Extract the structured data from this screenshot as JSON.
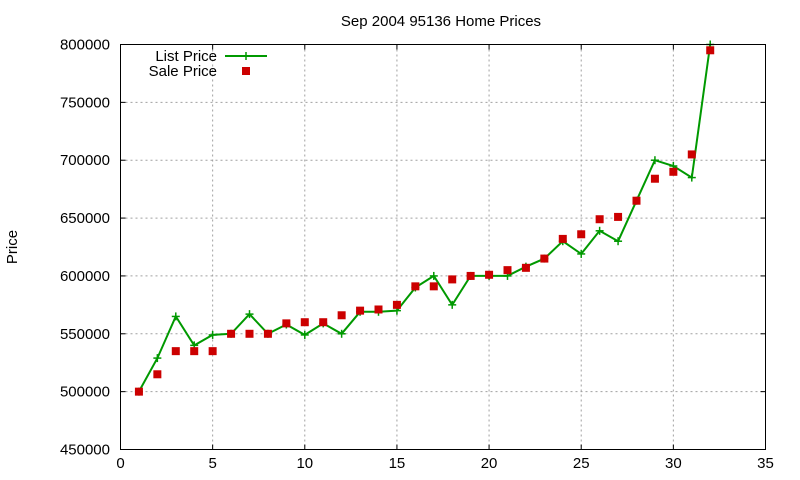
{
  "chart_data": {
    "type": "line",
    "title": "Sep 2004 95136 Home Prices",
    "xlabel": "",
    "ylabel": "Price",
    "xlim": [
      0,
      35
    ],
    "ylim": [
      450000,
      800000
    ],
    "xticks": [
      0,
      5,
      10,
      15,
      20,
      25,
      30,
      35
    ],
    "yticks": [
      450000,
      500000,
      550000,
      600000,
      650000,
      700000,
      750000,
      800000
    ],
    "grid": true,
    "legend_position": "top-left",
    "series": [
      {
        "name": "List Price",
        "style": "line+cross",
        "color": "#009900",
        "x": [
          1,
          2,
          3,
          4,
          5,
          6,
          7,
          8,
          9,
          10,
          11,
          12,
          13,
          14,
          15,
          16,
          17,
          18,
          19,
          20,
          21,
          22,
          23,
          24,
          25,
          26,
          27,
          28,
          29,
          30,
          31,
          32
        ],
        "values": [
          500000,
          529000,
          565000,
          540000,
          549000,
          550000,
          567000,
          550000,
          558000,
          549000,
          559000,
          550000,
          569000,
          569000,
          570000,
          590000,
          600000,
          575000,
          600000,
          600000,
          600000,
          608000,
          615000,
          630000,
          619000,
          639000,
          630000,
          665000,
          700000,
          695000,
          685000,
          800000
        ]
      },
      {
        "name": "Sale Price",
        "style": "square",
        "color": "#cc0000",
        "x": [
          1,
          2,
          3,
          4,
          5,
          6,
          7,
          8,
          9,
          10,
          11,
          12,
          13,
          14,
          15,
          16,
          17,
          18,
          19,
          20,
          21,
          22,
          23,
          24,
          25,
          26,
          27,
          28,
          29,
          30,
          31,
          32
        ],
        "values": [
          500000,
          515000,
          535000,
          535000,
          535000,
          550000,
          550000,
          550000,
          559000,
          560000,
          560000,
          566000,
          570000,
          571000,
          575000,
          591000,
          591000,
          597000,
          600000,
          601000,
          605000,
          607000,
          615000,
          632000,
          636000,
          649000,
          651000,
          665000,
          684000,
          690000,
          705000,
          795000
        ]
      }
    ]
  }
}
